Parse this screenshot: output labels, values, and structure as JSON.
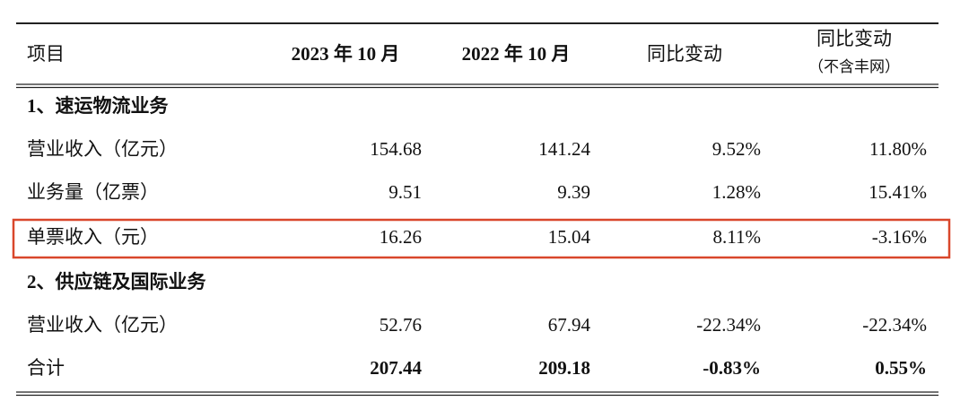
{
  "table": {
    "header": [
      "项目",
      "2023 年 10 月",
      "2022 年 10 月",
      "同比变动",
      "同比变动"
    ],
    "header_note": "（不含丰网）",
    "rows": [
      [
        "1、速运物流业务"
      ],
      [
        "营业收入（亿元）",
        "154.68",
        "141.24",
        "9.52%",
        "11.80%"
      ],
      [
        "业务量（亿票）",
        "9.51",
        "9.39",
        "1.28%",
        "15.41%"
      ],
      [
        "单票收入（元）",
        "16.26",
        "15.04",
        "8.11%",
        "-3.16%"
      ],
      [
        "2、供应链及国际业务"
      ],
      [
        "营业收入（亿元）",
        "52.76",
        "67.94",
        "-22.34%",
        "-22.34%"
      ],
      [
        "合计",
        "207.44",
        "209.18",
        "-0.83%",
        "0.55%"
      ]
    ]
  }
}
